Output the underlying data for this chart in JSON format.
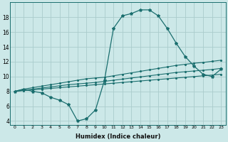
{
  "xlabel": "Humidex (Indice chaleur)",
  "background_color": "#cce8e8",
  "grid_color": "#aacccc",
  "line_color": "#1a6e6e",
  "xlim": [
    -0.5,
    23.5
  ],
  "ylim": [
    3.5,
    20
  ],
  "xticks": [
    0,
    1,
    2,
    3,
    4,
    5,
    6,
    7,
    8,
    9,
    10,
    11,
    12,
    13,
    14,
    15,
    16,
    17,
    18,
    19,
    20,
    21,
    22,
    23
  ],
  "yticks": [
    4,
    6,
    8,
    10,
    12,
    14,
    16,
    18
  ],
  "line_straight1_x": [
    0,
    1,
    2,
    3,
    4,
    5,
    6,
    7,
    8,
    9,
    10,
    11,
    12,
    13,
    14,
    15,
    16,
    17,
    18,
    19,
    20,
    21,
    22,
    23
  ],
  "line_straight1_y": [
    8.0,
    8.1,
    8.2,
    8.3,
    8.4,
    8.5,
    8.6,
    8.7,
    8.8,
    8.9,
    9.0,
    9.1,
    9.2,
    9.3,
    9.4,
    9.5,
    9.6,
    9.7,
    9.8,
    9.9,
    10.0,
    10.1,
    10.2,
    10.3
  ],
  "line_straight2_x": [
    0,
    1,
    2,
    3,
    4,
    5,
    6,
    7,
    8,
    9,
    10,
    11,
    12,
    13,
    14,
    15,
    16,
    17,
    18,
    19,
    20,
    21,
    22,
    23
  ],
  "line_straight2_y": [
    8.0,
    8.15,
    8.3,
    8.45,
    8.6,
    8.75,
    8.9,
    9.0,
    9.1,
    9.2,
    9.35,
    9.5,
    9.65,
    9.8,
    9.95,
    10.1,
    10.25,
    10.4,
    10.55,
    10.65,
    10.75,
    10.85,
    10.95,
    11.1
  ],
  "line_straight3_x": [
    0,
    1,
    2,
    3,
    4,
    5,
    6,
    7,
    8,
    9,
    10,
    11,
    12,
    13,
    14,
    15,
    16,
    17,
    18,
    19,
    20,
    21,
    22,
    23
  ],
  "line_straight3_y": [
    8.0,
    8.3,
    8.5,
    8.7,
    8.9,
    9.1,
    9.3,
    9.5,
    9.7,
    9.8,
    9.9,
    10.1,
    10.3,
    10.5,
    10.7,
    10.9,
    11.1,
    11.3,
    11.5,
    11.65,
    11.8,
    11.9,
    12.05,
    12.2
  ],
  "line_zigzag_x": [
    0,
    1,
    2,
    3,
    4,
    5,
    6,
    7,
    8,
    9,
    10,
    11,
    12,
    13,
    14,
    15,
    16,
    17,
    18,
    19,
    20,
    21,
    22,
    23
  ],
  "line_zigzag_y": [
    8.0,
    8.3,
    8.0,
    7.8,
    7.2,
    6.8,
    6.2,
    4.0,
    4.3,
    5.5,
    9.5,
    16.5,
    18.2,
    18.5,
    19.0,
    19.0,
    18.2,
    16.5,
    14.5,
    12.7,
    11.4,
    10.3,
    10.0,
    11.0
  ]
}
